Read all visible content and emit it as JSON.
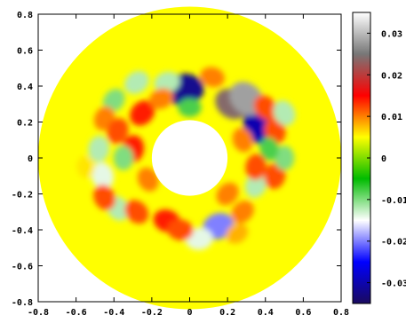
{
  "chart_data": {
    "type": "heatmap",
    "title": "",
    "xlabel": "",
    "ylabel": "",
    "xlim": [
      -0.8,
      0.8
    ],
    "ylim": [
      -0.8,
      0.8
    ],
    "x_ticks": [
      "-0.8",
      "-0.6",
      "-0.4",
      "-0.2",
      "0",
      "0.2",
      "0.4",
      "0.6",
      "0.8"
    ],
    "y_ticks": [
      "0.8",
      "0.6",
      "0.4",
      "0.2",
      "0",
      "-0.2",
      "-0.4",
      "-0.6",
      "-0.8"
    ],
    "domain": {
      "shape": "annulus",
      "inner_radius": 0.2,
      "outer_radius": 0.8
    },
    "colorbar": {
      "range": [
        -0.035,
        0.035
      ],
      "ticks": [
        "0.03",
        "0.02",
        "0.01",
        "0",
        "-0.01",
        "-0.02",
        "-0.03"
      ],
      "colormap": [
        "#1a0a5e",
        "#0000ff",
        "#ffffff",
        "#00bb00",
        "#ffff00",
        "#ff0000",
        "#777777",
        "#ffffff"
      ]
    },
    "background_value": 0,
    "background_color": "#ffff00",
    "blobs": [
      {
        "x": -0.03,
        "y": 0.38,
        "v": -0.032
      },
      {
        "x": 0.37,
        "y": 0.18,
        "v": -0.03
      },
      {
        "x": 0.22,
        "y": 0.3,
        "v": 0.024
      },
      {
        "x": 0.3,
        "y": 0.33,
        "v": 0.028
      },
      {
        "x": 0.4,
        "y": 0.28,
        "v": 0.012
      },
      {
        "x": -0.12,
        "y": 0.42,
        "v": -0.012
      },
      {
        "x": -0.28,
        "y": 0.42,
        "v": -0.012
      },
      {
        "x": -0.4,
        "y": 0.32,
        "v": -0.01
      },
      {
        "x": -0.45,
        "y": 0.22,
        "v": 0.01
      },
      {
        "x": -0.48,
        "y": 0.05,
        "v": -0.012
      },
      {
        "x": -0.46,
        "y": -0.1,
        "v": -0.014
      },
      {
        "x": -0.38,
        "y": -0.28,
        "v": -0.012
      },
      {
        "x": -0.45,
        "y": -0.22,
        "v": 0.012
      },
      {
        "x": -0.28,
        "y": -0.3,
        "v": 0.012
      },
      {
        "x": -0.25,
        "y": 0.25,
        "v": 0.014
      },
      {
        "x": -0.15,
        "y": 0.33,
        "v": 0.01
      },
      {
        "x": -0.3,
        "y": 0.05,
        "v": 0.014
      },
      {
        "x": -0.35,
        "y": 0.0,
        "v": -0.01
      },
      {
        "x": -0.38,
        "y": 0.15,
        "v": 0.012
      },
      {
        "x": -0.12,
        "y": -0.35,
        "v": 0.014
      },
      {
        "x": 0.15,
        "y": -0.38,
        "v": -0.02
      },
      {
        "x": 0.28,
        "y": -0.3,
        "v": 0.01
      },
      {
        "x": 0.35,
        "y": -0.15,
        "v": -0.012
      },
      {
        "x": 0.45,
        "y": -0.1,
        "v": 0.012
      },
      {
        "x": 0.5,
        "y": 0.0,
        "v": -0.01
      },
      {
        "x": 0.45,
        "y": 0.15,
        "v": 0.012
      },
      {
        "x": 0.42,
        "y": 0.05,
        "v": -0.008
      },
      {
        "x": 0.35,
        "y": -0.05,
        "v": 0.012
      },
      {
        "x": 0.28,
        "y": 0.1,
        "v": 0.01
      },
      {
        "x": 0.2,
        "y": -0.2,
        "v": 0.01
      },
      {
        "x": 0.05,
        "y": -0.45,
        "v": -0.014
      },
      {
        "x": -0.05,
        "y": -0.4,
        "v": 0.012
      },
      {
        "x": 0.0,
        "y": 0.28,
        "v": -0.008
      },
      {
        "x": 0.12,
        "y": 0.45,
        "v": 0.01
      },
      {
        "x": -0.22,
        "y": -0.12,
        "v": 0.01
      },
      {
        "x": 0.5,
        "y": 0.25,
        "v": -0.012
      },
      {
        "x": -0.55,
        "y": -0.05,
        "v": 0.006
      },
      {
        "x": 0.25,
        "y": -0.42,
        "v": 0.008
      }
    ]
  }
}
